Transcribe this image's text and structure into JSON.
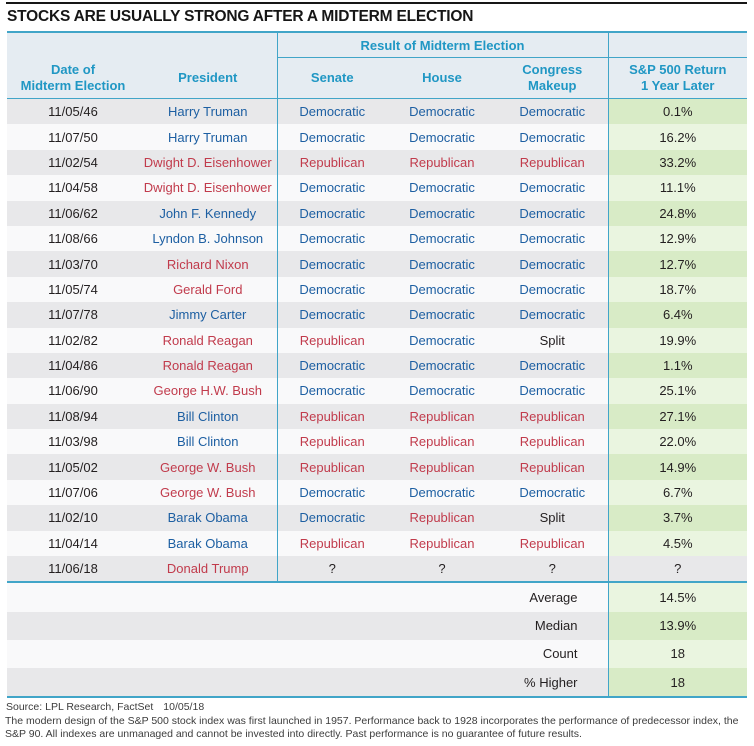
{
  "title": "STOCKS ARE USUALLY STRONG AFTER A MIDTERM ELECTION",
  "colors": {
    "title_ink": "#161616",
    "ink": "#231f20",
    "header_text": "#2097c4",
    "line": "#41a5c8",
    "header_bg": "#e5ecf2",
    "stripe_gray": "#e8e8ea",
    "stripe_white": "#f9f9fa",
    "green_dark": "#d8ebc6",
    "green_light": "#eaf5e0",
    "democratic_blue": "#1d5fa2",
    "republican_red": "#c13b4c",
    "footer_text": "#3c3c3c"
  },
  "table": {
    "group_header": "Result of Midterm Election",
    "columns": [
      "Date of\nMidterm Election",
      "President",
      "Senate",
      "House",
      "Congress\nMakeup",
      "S&P 500 Return\n1 Year Later"
    ]
  },
  "chart_data": {
    "type": "table",
    "title": "STOCKS ARE USUALLY STRONG AFTER A MIDTERM ELECTION",
    "columns": [
      "Date of Midterm Election",
      "President",
      "Senate",
      "House",
      "Congress Makeup",
      "S&P 500 Return 1 Year Later"
    ],
    "rows": [
      {
        "date": "11/05/46",
        "president": "Harry Truman",
        "president_party": "Democratic",
        "senate": "Democratic",
        "house": "Democratic",
        "congress": "Democratic",
        "return": "0.1%"
      },
      {
        "date": "11/07/50",
        "president": "Harry Truman",
        "president_party": "Democratic",
        "senate": "Democratic",
        "house": "Democratic",
        "congress": "Democratic",
        "return": "16.2%"
      },
      {
        "date": "11/02/54",
        "president": "Dwight D. Eisenhower",
        "president_party": "Republican",
        "senate": "Republican",
        "house": "Republican",
        "congress": "Republican",
        "return": "33.2%"
      },
      {
        "date": "11/04/58",
        "president": "Dwight D. Eisenhower",
        "president_party": "Republican",
        "senate": "Democratic",
        "house": "Democratic",
        "congress": "Democratic",
        "return": "11.1%"
      },
      {
        "date": "11/06/62",
        "president": "John F. Kennedy",
        "president_party": "Democratic",
        "senate": "Democratic",
        "house": "Democratic",
        "congress": "Democratic",
        "return": "24.8%"
      },
      {
        "date": "11/08/66",
        "president": "Lyndon B. Johnson",
        "president_party": "Democratic",
        "senate": "Democratic",
        "house": "Democratic",
        "congress": "Democratic",
        "return": "12.9%"
      },
      {
        "date": "11/03/70",
        "president": "Richard Nixon",
        "president_party": "Republican",
        "senate": "Democratic",
        "house": "Democratic",
        "congress": "Democratic",
        "return": "12.7%"
      },
      {
        "date": "11/05/74",
        "president": "Gerald Ford",
        "president_party": "Republican",
        "senate": "Democratic",
        "house": "Democratic",
        "congress": "Democratic",
        "return": "18.7%"
      },
      {
        "date": "11/07/78",
        "president": "Jimmy Carter",
        "president_party": "Democratic",
        "senate": "Democratic",
        "house": "Democratic",
        "congress": "Democratic",
        "return": "6.4%"
      },
      {
        "date": "11/02/82",
        "president": "Ronald Reagan",
        "president_party": "Republican",
        "senate": "Republican",
        "house": "Democratic",
        "congress": "Split",
        "return": "19.9%"
      },
      {
        "date": "11/04/86",
        "president": "Ronald Reagan",
        "president_party": "Republican",
        "senate": "Democratic",
        "house": "Democratic",
        "congress": "Democratic",
        "return": "1.1%"
      },
      {
        "date": "11/06/90",
        "president": "George H.W. Bush",
        "president_party": "Republican",
        "senate": "Democratic",
        "house": "Democratic",
        "congress": "Democratic",
        "return": "25.1%"
      },
      {
        "date": "11/08/94",
        "president": "Bill Clinton",
        "president_party": "Democratic",
        "senate": "Republican",
        "house": "Republican",
        "congress": "Republican",
        "return": "27.1%"
      },
      {
        "date": "11/03/98",
        "president": "Bill Clinton",
        "president_party": "Democratic",
        "senate": "Republican",
        "house": "Republican",
        "congress": "Republican",
        "return": "22.0%"
      },
      {
        "date": "11/05/02",
        "president": "George W. Bush",
        "president_party": "Republican",
        "senate": "Republican",
        "house": "Republican",
        "congress": "Republican",
        "return": "14.9%"
      },
      {
        "date": "11/07/06",
        "president": "George W. Bush",
        "president_party": "Republican",
        "senate": "Democratic",
        "house": "Democratic",
        "congress": "Democratic",
        "return": "6.7%"
      },
      {
        "date": "11/02/10",
        "president": "Barak Obama",
        "president_party": "Democratic",
        "senate": "Democratic",
        "house": "Republican",
        "congress": "Split",
        "return": "3.7%"
      },
      {
        "date": "11/04/14",
        "president": "Barak Obama",
        "president_party": "Democratic",
        "senate": "Republican",
        "house": "Republican",
        "congress": "Republican",
        "return": "4.5%"
      },
      {
        "date": "11/06/18",
        "president": "Donald Trump",
        "president_party": "Republican",
        "senate": "?",
        "house": "?",
        "congress": "?",
        "return": "?"
      }
    ],
    "summary": [
      {
        "label": "Average",
        "value": "14.5%"
      },
      {
        "label": "Median",
        "value": "13.9%"
      },
      {
        "label": "Count",
        "value": "18"
      },
      {
        "label": "% Higher",
        "value": "18"
      }
    ]
  },
  "footer": {
    "source_label": "Source: LPL Research, FactSet",
    "source_date": "10/05/18",
    "disclaimer": "The modern design of the S&P 500 stock index was first launched in 1957. Performance back to 1928 incorporates the performance of predecessor index, the S&P 90. All indexes are unmanaged and cannot be invested into directly. Past performance is no guarantee of future results."
  }
}
